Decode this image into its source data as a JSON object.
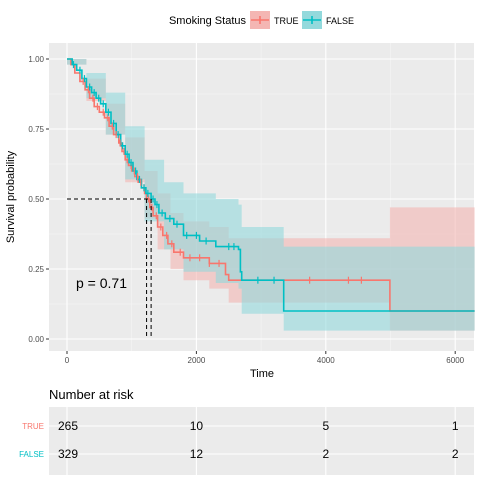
{
  "legend": {
    "title": "Smoking Status",
    "entries": [
      {
        "label": "TRUE",
        "color": "#F8766D",
        "fill": "#F4B6B3"
      },
      {
        "label": "FALSE",
        "color": "#00BFC4",
        "fill": "#93D9DC"
      }
    ]
  },
  "chart_data": {
    "type": "line",
    "subtype": "kaplan-meier",
    "xlabel": "Time",
    "ylabel": "Survival probability",
    "xlim": [
      0,
      6300
    ],
    "ylim": [
      0,
      1
    ],
    "x_ticks": [
      "0",
      "2000",
      "4000",
      "6000"
    ],
    "y_ticks": [
      "0.00",
      "0.25",
      "0.50",
      "0.75",
      "1.00"
    ],
    "grid": true,
    "legend_position": "top",
    "annotation": "p = 0.71",
    "median_survival": {
      "TRUE": 1230,
      "FALSE": 1300
    },
    "series": [
      {
        "name": "TRUE",
        "color": "#F8766D",
        "steps": [
          [
            0,
            1.0
          ],
          [
            60,
            0.98
          ],
          [
            120,
            0.95
          ],
          [
            200,
            0.92
          ],
          [
            280,
            0.89
          ],
          [
            350,
            0.86
          ],
          [
            420,
            0.83
          ],
          [
            500,
            0.81
          ],
          [
            580,
            0.79
          ],
          [
            650,
            0.76
          ],
          [
            720,
            0.73
          ],
          [
            800,
            0.7
          ],
          [
            850,
            0.67
          ],
          [
            900,
            0.64
          ],
          [
            950,
            0.62
          ],
          [
            1000,
            0.6
          ],
          [
            1050,
            0.58
          ],
          [
            1100,
            0.56
          ],
          [
            1150,
            0.54
          ],
          [
            1200,
            0.52
          ],
          [
            1230,
            0.5
          ],
          [
            1280,
            0.47
          ],
          [
            1330,
            0.44
          ],
          [
            1400,
            0.4
          ],
          [
            1480,
            0.37
          ],
          [
            1560,
            0.34
          ],
          [
            1650,
            0.31
          ],
          [
            1800,
            0.29
          ],
          [
            2200,
            0.27
          ],
          [
            2450,
            0.23
          ],
          [
            2500,
            0.21
          ],
          [
            4980,
            0.21
          ],
          [
            4990,
            0.1
          ],
          [
            6300,
            0.1
          ]
        ],
        "upper": [
          [
            0,
            1.0
          ],
          [
            300,
            0.93
          ],
          [
            600,
            0.84
          ],
          [
            900,
            0.72
          ],
          [
            1200,
            0.6
          ],
          [
            1400,
            0.52
          ],
          [
            1600,
            0.45
          ],
          [
            1800,
            0.42
          ],
          [
            2200,
            0.4
          ],
          [
            2500,
            0.36
          ],
          [
            4980,
            0.36
          ],
          [
            4990,
            0.47
          ],
          [
            6300,
            0.47
          ]
        ],
        "lower": [
          [
            0,
            0.98
          ],
          [
            300,
            0.85
          ],
          [
            600,
            0.73
          ],
          [
            900,
            0.56
          ],
          [
            1200,
            0.43
          ],
          [
            1400,
            0.32
          ],
          [
            1600,
            0.25
          ],
          [
            1800,
            0.21
          ],
          [
            2200,
            0.18
          ],
          [
            2500,
            0.13
          ],
          [
            4980,
            0.13
          ],
          [
            4990,
            0.03
          ],
          [
            6300,
            0.03
          ]
        ]
      },
      {
        "name": "FALSE",
        "color": "#00BFC4",
        "steps": [
          [
            0,
            1.0
          ],
          [
            80,
            0.98
          ],
          [
            150,
            0.96
          ],
          [
            230,
            0.93
          ],
          [
            300,
            0.9
          ],
          [
            380,
            0.88
          ],
          [
            450,
            0.86
          ],
          [
            520,
            0.84
          ],
          [
            600,
            0.81
          ],
          [
            680,
            0.77
          ],
          [
            760,
            0.73
          ],
          [
            830,
            0.69
          ],
          [
            900,
            0.66
          ],
          [
            960,
            0.63
          ],
          [
            1020,
            0.6
          ],
          [
            1080,
            0.57
          ],
          [
            1150,
            0.54
          ],
          [
            1220,
            0.52
          ],
          [
            1300,
            0.5
          ],
          [
            1360,
            0.48
          ],
          [
            1420,
            0.45
          ],
          [
            1520,
            0.43
          ],
          [
            1650,
            0.41
          ],
          [
            1800,
            0.37
          ],
          [
            2050,
            0.35
          ],
          [
            2300,
            0.33
          ],
          [
            2650,
            0.32
          ],
          [
            2680,
            0.24
          ],
          [
            2700,
            0.21
          ],
          [
            3200,
            0.21
          ],
          [
            3350,
            0.1
          ],
          [
            6300,
            0.1
          ]
        ],
        "upper": [
          [
            0,
            1.0
          ],
          [
            300,
            0.95
          ],
          [
            600,
            0.88
          ],
          [
            900,
            0.76
          ],
          [
            1200,
            0.64
          ],
          [
            1500,
            0.56
          ],
          [
            1800,
            0.52
          ],
          [
            2300,
            0.5
          ],
          [
            2650,
            0.48
          ],
          [
            2700,
            0.4
          ],
          [
            3200,
            0.4
          ],
          [
            3350,
            0.33
          ],
          [
            6300,
            0.33
          ]
        ],
        "lower": [
          [
            0,
            0.98
          ],
          [
            300,
            0.86
          ],
          [
            600,
            0.73
          ],
          [
            900,
            0.57
          ],
          [
            1200,
            0.42
          ],
          [
            1500,
            0.32
          ],
          [
            1800,
            0.24
          ],
          [
            2300,
            0.2
          ],
          [
            2650,
            0.18
          ],
          [
            2700,
            0.09
          ],
          [
            3200,
            0.09
          ],
          [
            3350,
            0.03
          ],
          [
            6300,
            0.03
          ]
        ]
      }
    ],
    "censor_marks": {
      "TRUE": [
        250,
        330,
        400,
        470,
        560,
        630,
        700,
        760,
        820,
        880,
        930,
        990,
        1040,
        1090,
        1140,
        1190,
        1260,
        1310,
        1380,
        1450,
        1540,
        1620,
        1750,
        1900,
        2050,
        2200,
        2350,
        3750,
        4350,
        4550
      ],
      "FALSE": [
        100,
        200,
        270,
        350,
        420,
        490,
        560,
        640,
        720,
        790,
        860,
        930,
        990,
        1060,
        1120,
        1190,
        1250,
        1330,
        1390,
        1470,
        1590,
        1700,
        1850,
        2000,
        2150,
        2500,
        2580,
        2950,
        3200
      ]
    }
  },
  "risk_table": {
    "title": "Number at risk",
    "times": [
      "0",
      "2000",
      "4000",
      "6000"
    ],
    "rows": [
      {
        "label": "TRUE",
        "color": "#F8766D",
        "counts": [
          "265",
          "10",
          "5",
          "1"
        ]
      },
      {
        "label": "FALSE",
        "color": "#00BFC4",
        "counts": [
          "329",
          "12",
          "2",
          "2"
        ]
      }
    ]
  }
}
